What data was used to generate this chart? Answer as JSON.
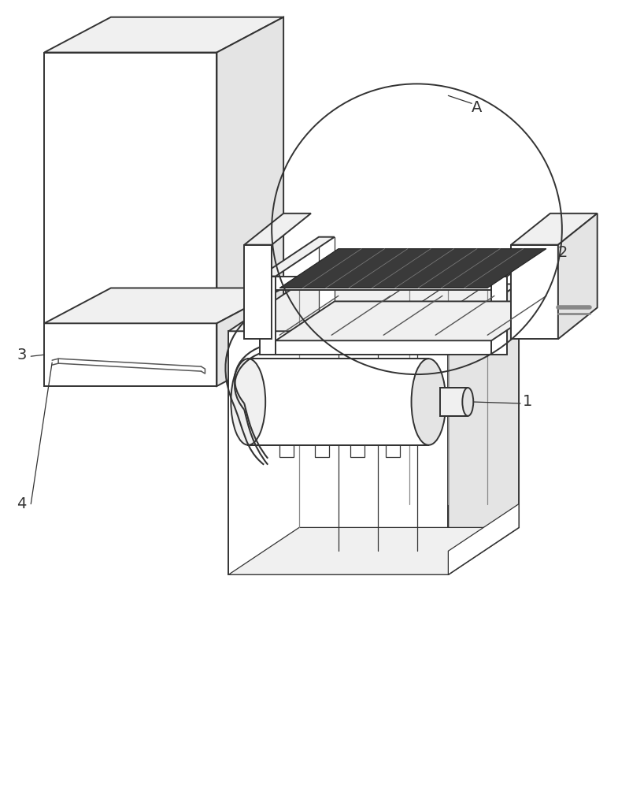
{
  "bg_color": "#ffffff",
  "lc": "#333333",
  "lw": 1.4,
  "tlw": 0.9,
  "fs": 14,
  "fig_w": 7.85,
  "fig_h": 10.0,
  "face_white": "#ffffff",
  "face_light": "#f0f0f0",
  "face_mid": "#e4e4e4",
  "face_dark": "#d8d8d8"
}
